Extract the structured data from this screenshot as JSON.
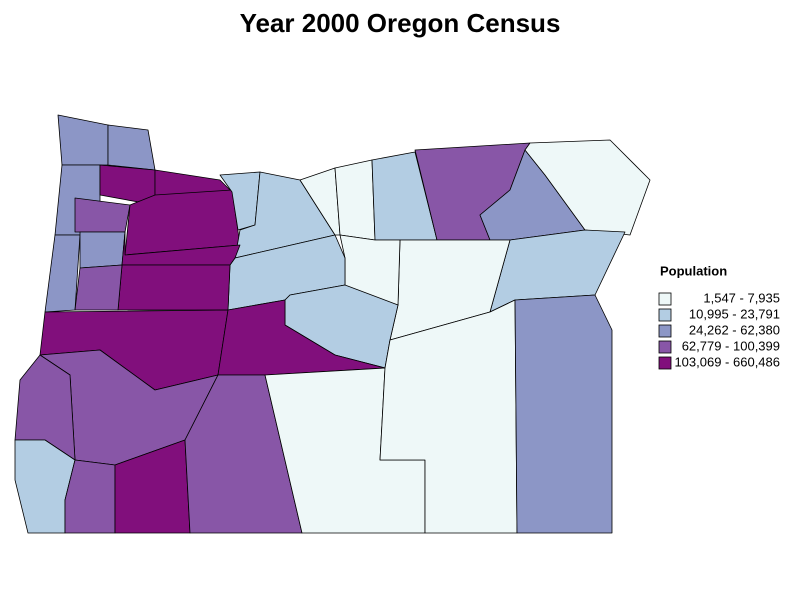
{
  "title": "Year 2000 Oregon Census",
  "legend": {
    "title": "Population",
    "items": [
      {
        "label": "1,547 - 7,935",
        "color": "#eef8f8"
      },
      {
        "label": "10,995 - 23,791",
        "color": "#b3cde3"
      },
      {
        "label": "24,262 - 62,380",
        "color": "#8c96c6"
      },
      {
        "label": "62,779 - 100,399",
        "color": "#8856a7"
      },
      {
        "label": "103,069 - 660,486",
        "color": "#810f7c"
      }
    ]
  }
}
